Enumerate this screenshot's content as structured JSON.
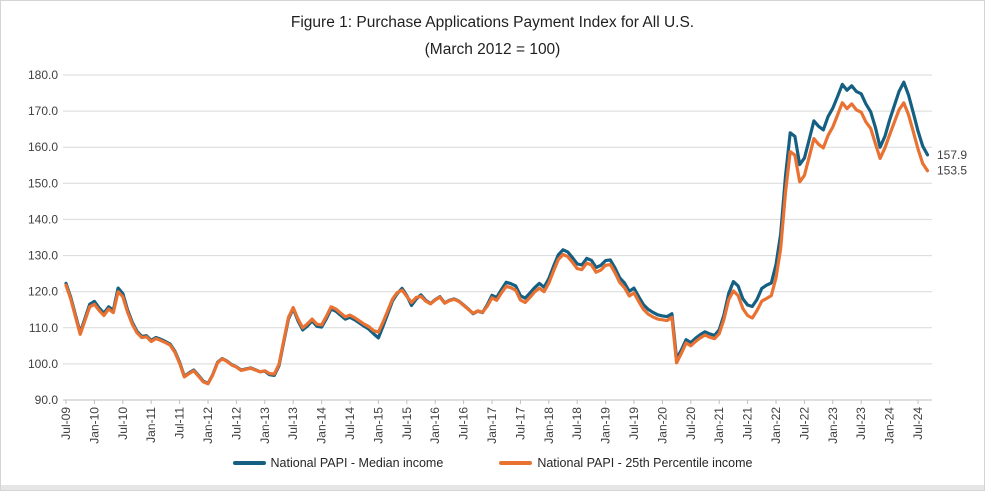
{
  "title": {
    "line1": "Figure 1: Purchase Applications Payment Index for All U.S.",
    "line2": "(March 2012 = 100)"
  },
  "colors": {
    "median_line": "#156082",
    "percentile25_line": "#E97132",
    "gridline": "#D9D9D9",
    "axis": "#BFBFBF",
    "tick_text": "#404040",
    "title_text": "#1F1F1F"
  },
  "legend": {
    "items": [
      {
        "label": "National PAPI - Median income",
        "color": "#156082"
      },
      {
        "label": "National PAPI - 25th Percentile income",
        "color": "#E97132"
      }
    ]
  },
  "chart_data": {
    "type": "line",
    "title": "Figure 1: Purchase Applications Payment Index for All U.S.",
    "subtitle": "(March 2012 = 100)",
    "x_start": "Jul-2009",
    "x_end": "Sep-2024",
    "frequency": "monthly",
    "x_tick_labels": [
      "Jul-09",
      "Jan-10",
      "Jul-10",
      "Jan-11",
      "Jul-11",
      "Jan-12",
      "Jul-12",
      "Jan-13",
      "Jul-13",
      "Jan-14",
      "Jul-14",
      "Jan-15",
      "Jul-15",
      "Jan-16",
      "Jul-16",
      "Jan-17",
      "Jul-17",
      "Jan-18",
      "Jul-18",
      "Jan-19",
      "Jul-19",
      "Jan-20",
      "Jul-20",
      "Jan-21",
      "Jul-21",
      "Jan-22",
      "Jul-22",
      "Jan-23",
      "Jul-23",
      "Jan-24",
      "Jul-24"
    ],
    "ylim": [
      90,
      180
    ],
    "y_ticks": [
      90,
      100,
      110,
      120,
      130,
      140,
      150,
      160,
      170,
      180
    ],
    "y_tick_labels": [
      "90.0",
      "100.0",
      "110.0",
      "120.0",
      "130.0",
      "140.0",
      "150.0",
      "160.0",
      "170.0",
      "180.0"
    ],
    "grid": "horizontal",
    "legend_position": "bottom",
    "series": [
      {
        "name": "National PAPI - Median income",
        "color": "#156082",
        "end_label": "157.9",
        "values": [
          122.3,
          118.5,
          113.5,
          108.7,
          112.5,
          116.5,
          117.3,
          115.5,
          114.0,
          115.8,
          114.8,
          121.0,
          119.5,
          115.0,
          111.5,
          109.0,
          107.6,
          107.8,
          106.5,
          107.3,
          106.8,
          106.2,
          105.5,
          103.5,
          100.5,
          96.6,
          97.5,
          98.3,
          96.8,
          95.2,
          94.6,
          97.0,
          100.4,
          101.5,
          100.8,
          99.8,
          99.2,
          98.3,
          98.6,
          98.9,
          98.4,
          97.8,
          98.0,
          97.0,
          96.8,
          99.5,
          106.0,
          112.5,
          115.3,
          112.0,
          109.4,
          110.5,
          111.9,
          110.4,
          110.2,
          112.5,
          115.2,
          114.6,
          113.5,
          112.4,
          112.9,
          112.2,
          111.3,
          110.4,
          109.6,
          108.3,
          107.2,
          110.5,
          114.0,
          117.5,
          119.5,
          120.9,
          118.9,
          116.2,
          118.0,
          119.1,
          117.6,
          116.7,
          117.8,
          118.6,
          116.9,
          117.6,
          118.0,
          117.4,
          116.3,
          115.2,
          113.9,
          114.6,
          114.2,
          116.4,
          119.0,
          118.4,
          120.6,
          122.6,
          122.2,
          121.6,
          118.9,
          118.2,
          119.6,
          121.1,
          122.3,
          121.2,
          123.6,
          127.0,
          130.2,
          131.6,
          131.0,
          129.4,
          127.7,
          127.4,
          129.2,
          128.7,
          126.7,
          127.3,
          128.6,
          128.8,
          126.5,
          123.8,
          122.4,
          120.1,
          121.0,
          118.6,
          116.4,
          115.1,
          114.3,
          113.6,
          113.3,
          113.1,
          113.9,
          101.4,
          103.8,
          106.7,
          105.9,
          107.1,
          108.1,
          108.9,
          108.3,
          107.9,
          109.4,
          113.5,
          119.5,
          122.8,
          121.6,
          118.0,
          116.3,
          115.9,
          117.9,
          120.9,
          121.8,
          122.4,
          127.5,
          136.0,
          152.0,
          164.0,
          163.0,
          155.2,
          157.0,
          162.0,
          167.3,
          165.8,
          164.8,
          168.5,
          170.8,
          174.0,
          177.4,
          175.8,
          177.0,
          175.4,
          174.8,
          172.0,
          169.8,
          165.5,
          160.0,
          163.0,
          167.5,
          171.5,
          175.5,
          178.0,
          174.5,
          169.5,
          164.5,
          160.3,
          157.9
        ]
      },
      {
        "name": "National PAPI - 25th Percentile income",
        "color": "#E97132",
        "end_label": "153.5",
        "values": [
          121.8,
          118.0,
          113.0,
          108.2,
          112.0,
          115.8,
          116.5,
          114.8,
          113.4,
          115.2,
          114.2,
          120.0,
          118.6,
          114.4,
          111.0,
          108.6,
          107.3,
          107.5,
          106.2,
          107.0,
          106.5,
          105.9,
          105.2,
          103.2,
          100.2,
          96.4,
          97.3,
          98.1,
          96.6,
          95.0,
          94.5,
          96.9,
          100.3,
          101.4,
          100.7,
          99.7,
          99.1,
          98.2,
          98.5,
          98.8,
          98.3,
          97.8,
          98.1,
          97.3,
          97.2,
          99.9,
          106.4,
          112.9,
          115.6,
          112.5,
          110.0,
          111.1,
          112.4,
          111.0,
          110.8,
          113.1,
          115.8,
          115.2,
          114.1,
          113.0,
          113.5,
          112.8,
          111.9,
          111.0,
          110.3,
          109.2,
          108.8,
          111.6,
          114.8,
          118.0,
          119.8,
          120.4,
          118.7,
          117.0,
          118.4,
          118.7,
          117.4,
          116.6,
          117.7,
          118.5,
          116.8,
          117.5,
          117.9,
          117.3,
          116.2,
          115.1,
          114.0,
          114.7,
          114.3,
          116.0,
          118.3,
          117.6,
          119.7,
          121.5,
          121.1,
          120.4,
          117.7,
          117.0,
          118.4,
          119.9,
          121.0,
          120.0,
          122.4,
          125.7,
          128.9,
          130.3,
          129.7,
          128.1,
          126.4,
          126.1,
          127.9,
          127.4,
          125.4,
          126.0,
          127.3,
          127.5,
          125.2,
          122.5,
          121.1,
          118.8,
          119.7,
          117.3,
          115.1,
          113.8,
          113.0,
          112.4,
          112.2,
          112.0,
          112.9,
          100.3,
          102.9,
          105.8,
          105.0,
          106.2,
          107.2,
          108.0,
          107.4,
          107.0,
          108.4,
          112.3,
          117.8,
          120.2,
          118.9,
          115.3,
          113.4,
          112.7,
          114.8,
          117.4,
          118.1,
          118.9,
          123.8,
          132.0,
          147.5,
          158.8,
          157.8,
          150.4,
          152.2,
          157.2,
          162.4,
          160.8,
          159.8,
          163.3,
          165.6,
          168.9,
          172.3,
          170.7,
          172.0,
          170.3,
          169.7,
          167.0,
          165.2,
          161.0,
          156.9,
          159.8,
          163.4,
          166.9,
          170.4,
          172.3,
          169.0,
          164.3,
          159.5,
          155.5,
          153.5
        ]
      }
    ],
    "annotations": [
      {
        "text": "157.9",
        "series": "National PAPI - Median income",
        "position": "end-of-line"
      },
      {
        "text": "153.5",
        "series": "National PAPI - 25th Percentile income",
        "position": "end-of-line"
      }
    ]
  }
}
